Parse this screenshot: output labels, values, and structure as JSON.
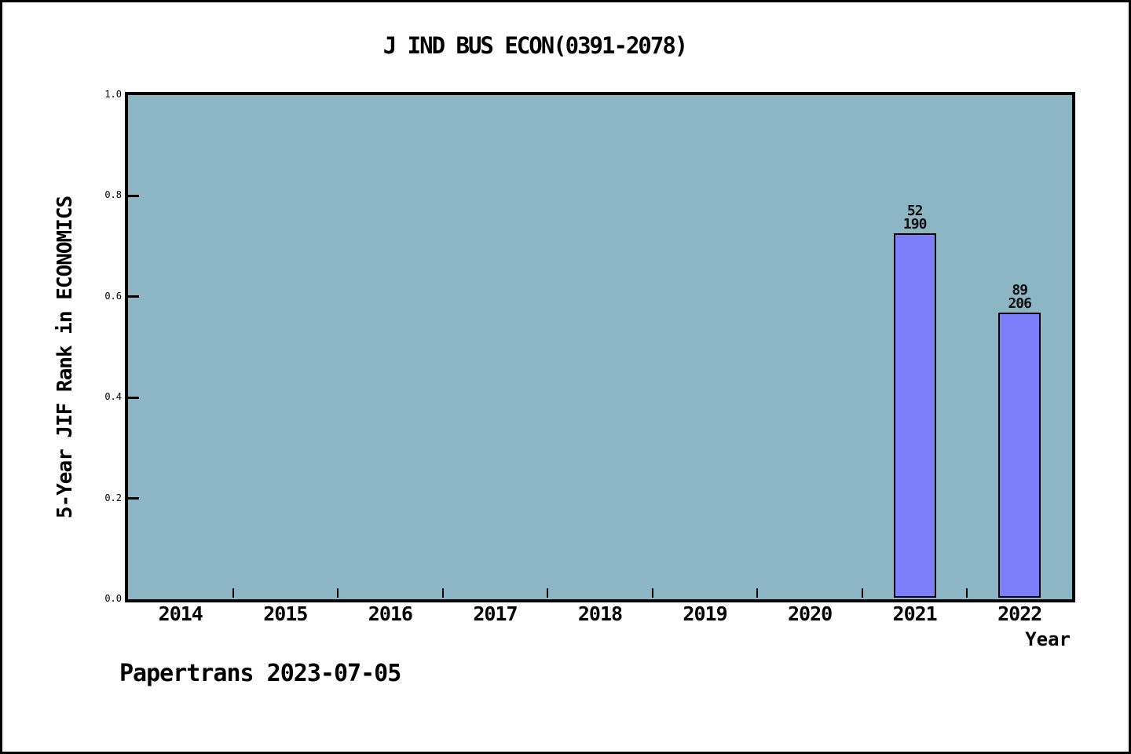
{
  "figure": {
    "title": "J IND BUS ECON(0391-2078)",
    "footer": "Papertrans 2023-07-05"
  },
  "colors": {
    "figure_bg": "#ffffff",
    "figure_border": "#000000",
    "plot_bg": "#8db6c4",
    "bar_fill": "#7d7efa",
    "bar_edge": "#000000",
    "text": "#000000"
  },
  "chart_data": {
    "type": "bar",
    "title": "J IND BUS ECON(0391-2078)",
    "xlabel": "Year",
    "ylabel": "5-Year JIF Rank in ECONOMICS",
    "categories": [
      "2014",
      "2015",
      "2016",
      "2017",
      "2018",
      "2019",
      "2020",
      "2021",
      "2022"
    ],
    "values": [
      null,
      null,
      null,
      null,
      null,
      null,
      null,
      0.726,
      0.568
    ],
    "yticks": [
      "0.0",
      "0.2",
      "0.4",
      "0.6",
      "0.8",
      "1.0"
    ],
    "ylim": [
      0.0,
      1.0
    ],
    "grid": false,
    "legend": null,
    "bars": [
      {
        "category": "2021",
        "value": 0.726,
        "annotation_line1": "52",
        "annotation_line2": "190"
      },
      {
        "category": "2022",
        "value": 0.568,
        "annotation_line1": "89",
        "annotation_line2": "206"
      }
    ]
  }
}
